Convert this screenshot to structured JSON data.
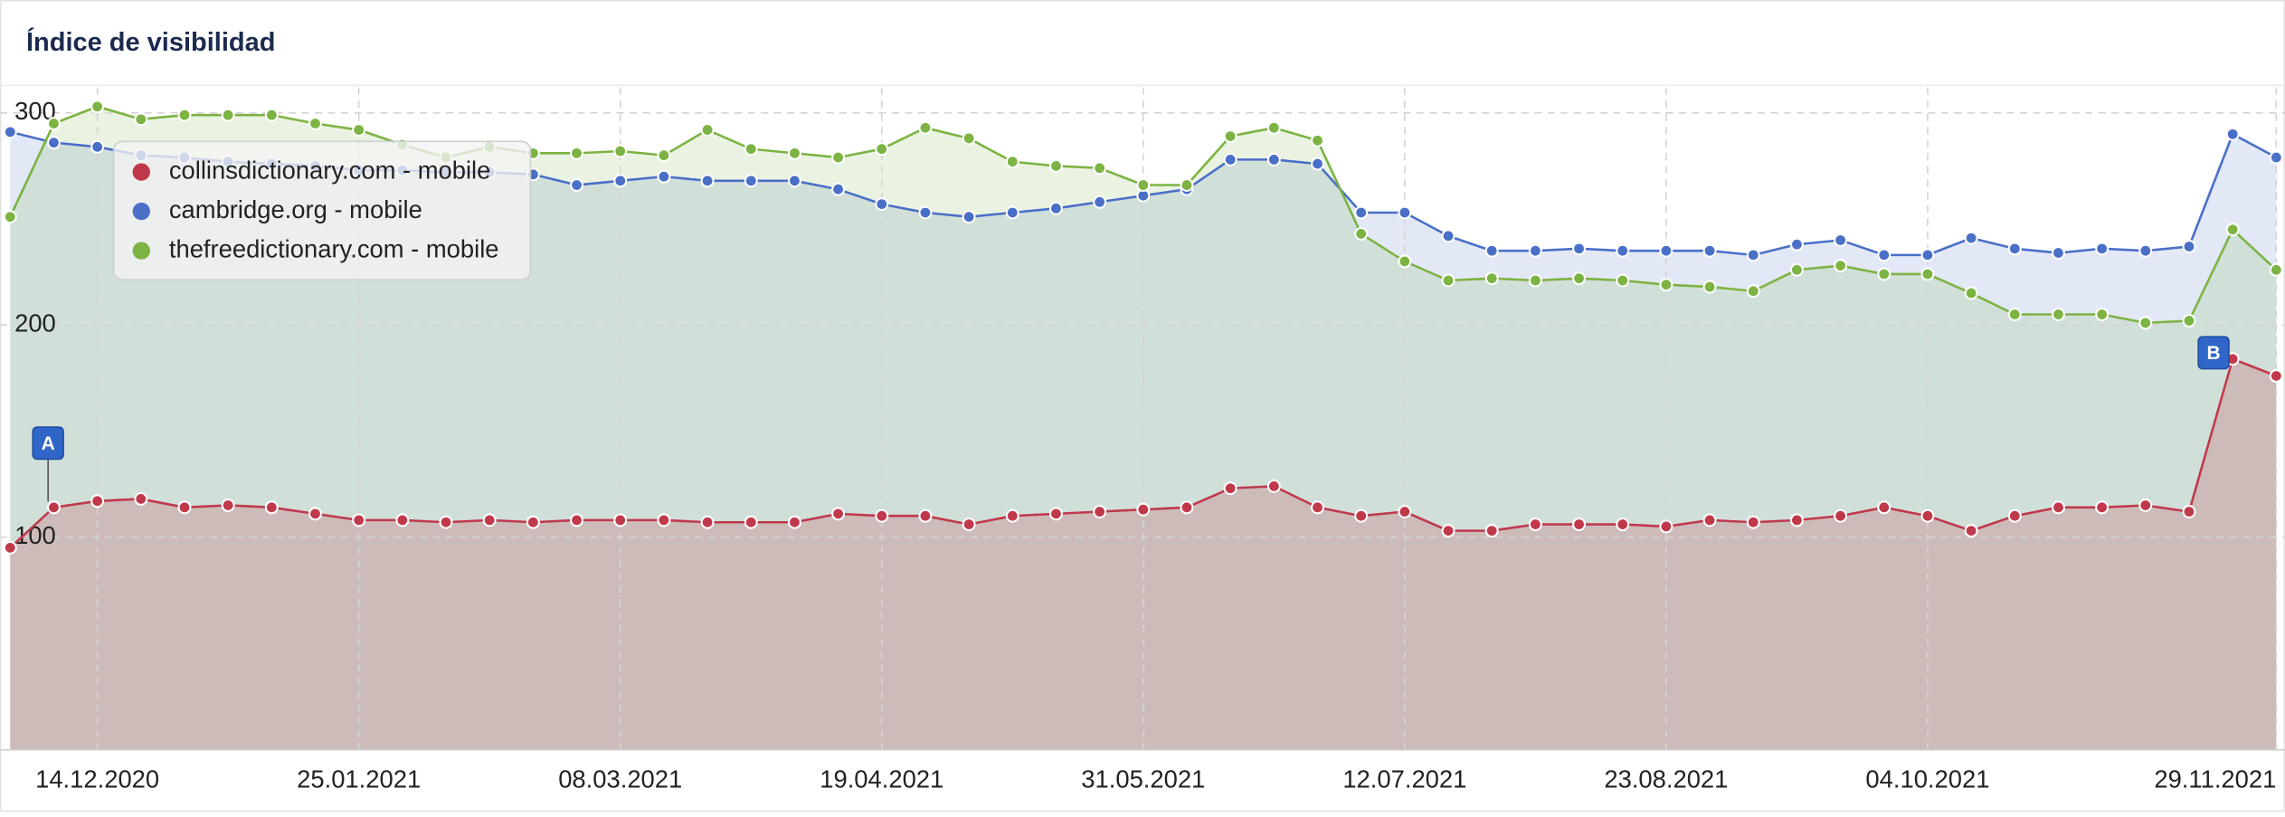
{
  "chart_data": {
    "type": "line",
    "title": "Índice de visibilidad",
    "categories": [
      null,
      null,
      "14.12.2020",
      null,
      null,
      null,
      null,
      null,
      "25.01.2021",
      null,
      null,
      null,
      null,
      null,
      "08.03.2021",
      null,
      null,
      null,
      null,
      null,
      "19.04.2021",
      null,
      null,
      null,
      null,
      null,
      "31.05.2021",
      null,
      null,
      null,
      null,
      null,
      "12.07.2021",
      null,
      null,
      null,
      null,
      null,
      "23.08.2021",
      null,
      null,
      null,
      null,
      null,
      "04.10.2021",
      null,
      null,
      null,
      null,
      null,
      null,
      null,
      "29.11.2021"
    ],
    "series": [
      {
        "name": "collinsdictionary.com - mobile",
        "color": "#c0394b",
        "values": [
          95,
          114,
          117,
          118,
          114,
          115,
          114,
          111,
          108,
          108,
          107,
          108,
          107,
          108,
          108,
          108,
          107,
          107,
          107,
          111,
          110,
          110,
          106,
          110,
          111,
          112,
          113,
          114,
          123,
          124,
          114,
          110,
          112,
          103,
          103,
          106,
          106,
          106,
          105,
          108,
          107,
          108,
          110,
          114,
          110,
          103,
          110,
          114,
          114,
          115,
          112,
          184,
          176
        ]
      },
      {
        "name": "cambridge.org - mobile",
        "color": "#4a6fc7",
        "values": [
          291,
          286,
          284,
          280,
          279,
          277,
          276,
          275,
          273,
          273,
          272,
          272,
          271,
          266,
          268,
          270,
          268,
          268,
          268,
          264,
          257,
          253,
          251,
          253,
          255,
          258,
          261,
          264,
          278,
          278,
          276,
          253,
          253,
          242,
          235,
          235,
          236,
          235,
          235,
          235,
          233,
          238,
          240,
          233,
          233,
          241,
          236,
          234,
          236,
          235,
          237,
          290,
          279
        ]
      },
      {
        "name": "thefreedictionary.com - mobile",
        "color": "#7cb342",
        "values": [
          251,
          295,
          303,
          297,
          299,
          299,
          299,
          295,
          292,
          285,
          279,
          284,
          281,
          281,
          282,
          280,
          292,
          283,
          281,
          279,
          283,
          293,
          288,
          277,
          275,
          274,
          266,
          266,
          289,
          293,
          287,
          243,
          230,
          221,
          222,
          221,
          222,
          221,
          219,
          218,
          216,
          226,
          228,
          224,
          224,
          215,
          205,
          205,
          205,
          201,
          202,
          245,
          226
        ]
      }
    ],
    "ylim": [
      0,
      312
    ],
    "yticks": [
      100,
      200,
      300
    ],
    "grid": true,
    "legend": "upper left",
    "annotations": [
      "A",
      "B"
    ]
  }
}
